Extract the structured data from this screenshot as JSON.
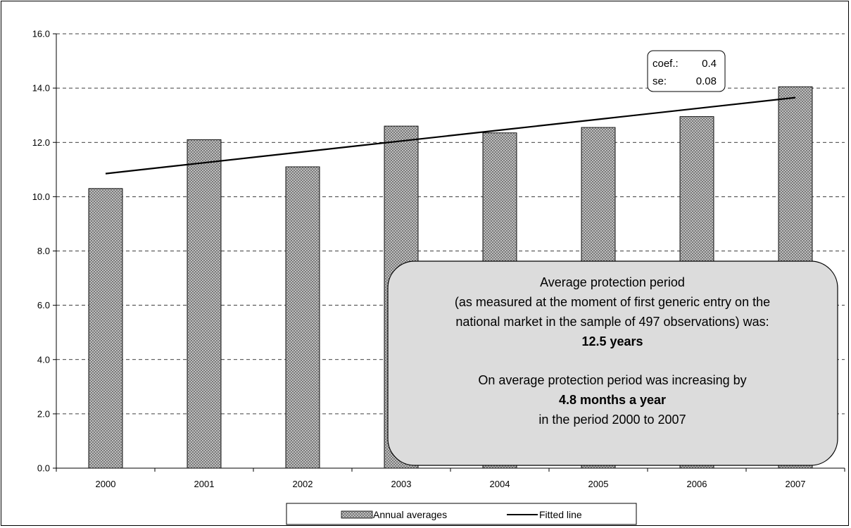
{
  "chart_data": {
    "type": "bar",
    "categories": [
      "2000",
      "2001",
      "2002",
      "2003",
      "2004",
      "2005",
      "2006",
      "2007"
    ],
    "series": [
      {
        "name": "Annual averages",
        "kind": "bar",
        "values": [
          10.3,
          12.1,
          11.1,
          12.6,
          12.35,
          12.55,
          12.95,
          14.05
        ]
      },
      {
        "name": "Fitted line",
        "kind": "line",
        "values": [
          10.85,
          11.25,
          11.65,
          12.05,
          12.45,
          12.85,
          13.25,
          13.65
        ]
      }
    ],
    "ylim": [
      0,
      16
    ],
    "yticks": [
      "0.0",
      "2.0",
      "4.0",
      "6.0",
      "8.0",
      "10.0",
      "12.0",
      "14.0",
      "16.0"
    ],
    "grid": "horizontal dashed",
    "legend_position": "bottom-center",
    "colors": {
      "bar_fill": "#c8c8c8",
      "bar_hatch": "#707070",
      "line": "#000000",
      "callout_fill": "#dcdcdc"
    }
  },
  "coef_box": {
    "line1_label": "coef.:",
    "line1_value": "0.4",
    "line2_label": "se:",
    "line2_value": "0.08"
  },
  "callout": {
    "line1": "Average protection period",
    "line2": "(as measured at the moment of first generic entry on the",
    "line3": "national market in the sample of 497 observations) was:",
    "line4": "12.5 years",
    "line5": "On average protection period was increasing by",
    "line6": "4.8 months a year",
    "line7": "in the period 2000 to 2007"
  }
}
